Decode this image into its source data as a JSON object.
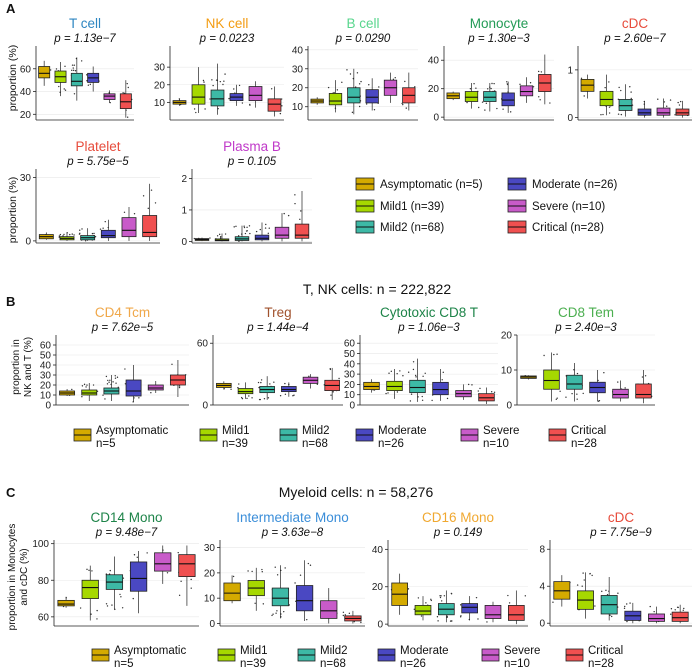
{
  "groups": [
    {
      "label": "Asymptomatic (n=5)",
      "short": "Asymptomatic",
      "n": "n=5",
      "color": "#D4AA00"
    },
    {
      "label": "Mild1 (n=39)",
      "short": "Mild1",
      "n": "n=39",
      "color": "#A6D800"
    },
    {
      "label": "Mild2 (n=68)",
      "short": "Mild2",
      "n": "n=68",
      "color": "#3DB9A6"
    },
    {
      "label": "Moderate (n=26)",
      "short": "Moderate",
      "n": "n=26",
      "color": "#4A48C2"
    },
    {
      "label": "Severe (n=10)",
      "short": "Severe",
      "n": "n=10",
      "color": "#C85BC9"
    },
    {
      "label": "Critical (n=28)",
      "short": "Critical",
      "n": "n=28",
      "color": "#F05050"
    }
  ],
  "panel_labels": {
    "a": "A",
    "b": "B",
    "c": "C"
  },
  "headers": {
    "b": "T, NK cells: n = 222,822",
    "c": "Myeloid cells: n = 58,276"
  },
  "ylabels": {
    "a": "proportion (%)",
    "b1": "proportion in",
    "b2": "NK and T (%)",
    "c1": "proportion in Monocytes",
    "c2": "and cDC (%)"
  },
  "chart_data": [
    {
      "type": "box",
      "id": "a_tcell",
      "title": "T cell",
      "title_color": "#2E86C1",
      "pvalue": "p = 1.13e−7",
      "ylim": [
        15,
        80
      ],
      "ticks": [
        20,
        40,
        60
      ],
      "boxes": [
        {
          "q1": 52,
          "med": 56,
          "q3": 62,
          "lo": 45,
          "hi": 67
        },
        {
          "q1": 48,
          "med": 53,
          "q3": 58,
          "lo": 36,
          "hi": 66
        },
        {
          "q1": 45,
          "med": 49,
          "q3": 56,
          "lo": 32,
          "hi": 70
        },
        {
          "q1": 48,
          "med": 52,
          "q3": 56,
          "lo": 40,
          "hi": 62
        },
        {
          "q1": 33,
          "med": 36,
          "q3": 38,
          "lo": 30,
          "hi": 41
        },
        {
          "q1": 25,
          "med": 31,
          "q3": 38,
          "lo": 17,
          "hi": 50
        }
      ]
    },
    {
      "type": "box",
      "id": "a_nk",
      "title": "NK cell",
      "title_color": "#F39C12",
      "pvalue": "p = 0.0223",
      "ylim": [
        0,
        42
      ],
      "ticks": [
        10,
        20,
        30
      ],
      "boxes": [
        {
          "q1": 9,
          "med": 10,
          "q3": 11,
          "lo": 8,
          "hi": 12
        },
        {
          "q1": 9,
          "med": 13,
          "q3": 20,
          "lo": 4,
          "hi": 30
        },
        {
          "q1": 8,
          "med": 12,
          "q3": 17,
          "lo": 3,
          "hi": 32
        },
        {
          "q1": 11,
          "med": 13,
          "q3": 15,
          "lo": 8,
          "hi": 20
        },
        {
          "q1": 11,
          "med": 14,
          "q3": 19,
          "lo": 7,
          "hi": 22
        },
        {
          "q1": 5,
          "med": 9,
          "q3": 12,
          "lo": 2,
          "hi": 19
        }
      ]
    },
    {
      "type": "box",
      "id": "a_bcell",
      "title": "B cell",
      "title_color": "#58D68D",
      "pvalue": "p = 0.0290",
      "ylim": [
        3,
        42
      ],
      "ticks": [
        10,
        20,
        30,
        40
      ],
      "boxes": [
        {
          "q1": 12,
          "med": 13,
          "q3": 14,
          "lo": 11,
          "hi": 15
        },
        {
          "q1": 11,
          "med": 13,
          "q3": 17,
          "lo": 7,
          "hi": 24
        },
        {
          "q1": 12,
          "med": 15,
          "q3": 20,
          "lo": 6,
          "hi": 30
        },
        {
          "q1": 12,
          "med": 15,
          "q3": 19,
          "lo": 8,
          "hi": 25
        },
        {
          "q1": 16,
          "med": 20,
          "q3": 24,
          "lo": 12,
          "hi": 28
        },
        {
          "q1": 12,
          "med": 16,
          "q3": 20,
          "lo": 8,
          "hi": 28
        }
      ]
    },
    {
      "type": "box",
      "id": "a_mono",
      "title": "Monocyte",
      "title_color": "#239B56",
      "pvalue": "p = 1.30e−3",
      "ylim": [
        -2,
        50
      ],
      "ticks": [
        0,
        20,
        40
      ],
      "boxes": [
        {
          "q1": 13,
          "med": 15,
          "q3": 17,
          "lo": 12,
          "hi": 18
        },
        {
          "q1": 11,
          "med": 14,
          "q3": 18,
          "lo": 6,
          "hi": 24
        },
        {
          "q1": 11,
          "med": 14,
          "q3": 18,
          "lo": 4,
          "hi": 24
        },
        {
          "q1": 8,
          "med": 12,
          "q3": 17,
          "lo": 3,
          "hi": 25
        },
        {
          "q1": 15,
          "med": 18,
          "q3": 22,
          "lo": 10,
          "hi": 28
        },
        {
          "q1": 18,
          "med": 24,
          "q3": 30,
          "lo": 9,
          "hi": 44
        }
      ]
    },
    {
      "type": "box",
      "id": "a_cdc",
      "title": "cDC",
      "title_color": "#E74C3C",
      "pvalue": "p = 2.60e−7",
      "ylim": [
        -0.05,
        1.5
      ],
      "ticks": [
        0,
        1
      ],
      "boxes": [
        {
          "q1": 0.55,
          "med": 0.68,
          "q3": 0.8,
          "lo": 0.4,
          "hi": 0.9
        },
        {
          "q1": 0.25,
          "med": 0.38,
          "q3": 0.55,
          "lo": 0.05,
          "hi": 0.9
        },
        {
          "q1": 0.15,
          "med": 0.25,
          "q3": 0.38,
          "lo": 0.02,
          "hi": 0.7
        },
        {
          "q1": 0.05,
          "med": 0.1,
          "q3": 0.18,
          "lo": 0.0,
          "hi": 0.35
        },
        {
          "q1": 0.05,
          "med": 0.1,
          "q3": 0.2,
          "lo": 0.0,
          "hi": 0.4
        },
        {
          "q1": 0.05,
          "med": 0.1,
          "q3": 0.18,
          "lo": 0.0,
          "hi": 0.35
        }
      ]
    },
    {
      "type": "box",
      "id": "a_platelet",
      "title": "Platelet",
      "title_color": "#E74C3C",
      "pvalue": "p = 5.75e−5",
      "ylim": [
        -1,
        34
      ],
      "ticks": [
        0,
        30
      ],
      "boxes": [
        {
          "q1": 1,
          "med": 2,
          "q3": 3,
          "lo": 0.5,
          "hi": 4
        },
        {
          "q1": 0.5,
          "med": 1.2,
          "q3": 2,
          "lo": 0,
          "hi": 4
        },
        {
          "q1": 0.5,
          "med": 1.5,
          "q3": 2.5,
          "lo": 0,
          "hi": 6
        },
        {
          "q1": 1.5,
          "med": 2.5,
          "q3": 5,
          "lo": 0,
          "hi": 10
        },
        {
          "q1": 2,
          "med": 5,
          "q3": 11,
          "lo": 0,
          "hi": 16
        },
        {
          "q1": 2,
          "med": 4,
          "q3": 12,
          "lo": 0,
          "hi": 27
        }
      ]
    },
    {
      "type": "box",
      "id": "a_plasmab",
      "title": "Plasma B",
      "title_color": "#C039C9",
      "pvalue": "p = 0.105",
      "ylim": [
        -0.05,
        2.3
      ],
      "ticks": [
        0,
        1,
        2
      ],
      "boxes": [
        {
          "q1": 0.03,
          "med": 0.06,
          "q3": 0.09,
          "lo": 0.01,
          "hi": 0.12
        },
        {
          "q1": 0.02,
          "med": 0.04,
          "q3": 0.08,
          "lo": 0,
          "hi": 0.25
        },
        {
          "q1": 0.03,
          "med": 0.08,
          "q3": 0.15,
          "lo": 0,
          "hi": 0.5
        },
        {
          "q1": 0.05,
          "med": 0.1,
          "q3": 0.2,
          "lo": 0,
          "hi": 0.6
        },
        {
          "q1": 0.1,
          "med": 0.2,
          "q3": 0.45,
          "lo": 0,
          "hi": 0.9
        },
        {
          "q1": 0.1,
          "med": 0.2,
          "q3": 0.55,
          "lo": 0,
          "hi": 1.6
        }
      ]
    },
    {
      "type": "box",
      "id": "b_cd4tcm",
      "title": "CD4 Tcm",
      "title_color": "#F0A84A",
      "pvalue": "p = 7.62e−5",
      "ylim": [
        0,
        70
      ],
      "ticks": [
        0,
        10,
        20,
        30,
        40,
        50,
        60
      ],
      "boxes": [
        {
          "q1": 10,
          "med": 12,
          "q3": 14,
          "lo": 9,
          "hi": 16
        },
        {
          "q1": 10,
          "med": 12,
          "q3": 15,
          "lo": 4,
          "hi": 22
        },
        {
          "q1": 11,
          "med": 14,
          "q3": 17,
          "lo": 4,
          "hi": 30
        },
        {
          "q1": 9,
          "med": 14,
          "q3": 25,
          "lo": 3,
          "hi": 40
        },
        {
          "q1": 15,
          "med": 17,
          "q3": 20,
          "lo": 12,
          "hi": 24
        },
        {
          "q1": 20,
          "med": 25,
          "q3": 30,
          "lo": 8,
          "hi": 45
        }
      ]
    },
    {
      "type": "box",
      "id": "b_treg",
      "title": "Treg",
      "title_color": "#A0522D",
      "pvalue": "p = 1.44e−4",
      "ylim": [
        0,
        68
      ],
      "ticks": [
        0,
        60
      ],
      "boxes": [
        {
          "q1": 17,
          "med": 19,
          "q3": 21,
          "lo": 15,
          "hi": 23
        },
        {
          "q1": 11,
          "med": 13,
          "q3": 16,
          "lo": 6,
          "hi": 22
        },
        {
          "q1": 12,
          "med": 15,
          "q3": 18,
          "lo": 5,
          "hi": 28
        },
        {
          "q1": 13,
          "med": 15,
          "q3": 18,
          "lo": 8,
          "hi": 22
        },
        {
          "q1": 21,
          "med": 24,
          "q3": 27,
          "lo": 16,
          "hi": 30
        },
        {
          "q1": 14,
          "med": 19,
          "q3": 24,
          "lo": 5,
          "hi": 36
        }
      ]
    },
    {
      "type": "box",
      "id": "b_cytotoxic",
      "title": "Cytotoxic CD8 T",
      "title_color": "#1E8449",
      "pvalue": "p = 1.06e−3",
      "ylim": [
        0,
        68
      ],
      "ticks": [
        0,
        10,
        20,
        30,
        40,
        50,
        60
      ],
      "boxes": [
        {
          "q1": 15,
          "med": 18,
          "q3": 22,
          "lo": 12,
          "hi": 25
        },
        {
          "q1": 14,
          "med": 18,
          "q3": 23,
          "lo": 6,
          "hi": 35
        },
        {
          "q1": 12,
          "med": 17,
          "q3": 24,
          "lo": 3,
          "hi": 45
        },
        {
          "q1": 10,
          "med": 15,
          "q3": 22,
          "lo": 4,
          "hi": 35
        },
        {
          "q1": 8,
          "med": 11,
          "q3": 14,
          "lo": 5,
          "hi": 20
        },
        {
          "q1": 4,
          "med": 7,
          "q3": 11,
          "lo": 1,
          "hi": 17
        }
      ]
    },
    {
      "type": "box",
      "id": "b_cd8tem",
      "title": "CD8 Tem",
      "title_color": "#4CAF50",
      "pvalue": "p = 2.40e−3",
      "ylim": [
        0,
        20
      ],
      "ticks": [
        0,
        10,
        20
      ],
      "boxes": [
        {
          "q1": 7.6,
          "med": 8,
          "q3": 8.3,
          "lo": 7.3,
          "hi": 8.5
        },
        {
          "q1": 4.5,
          "med": 7,
          "q3": 10,
          "lo": 1,
          "hi": 15
        },
        {
          "q1": 4.5,
          "med": 6,
          "q3": 8.5,
          "lo": 1,
          "hi": 12
        },
        {
          "q1": 3.5,
          "med": 5,
          "q3": 6.5,
          "lo": 1,
          "hi": 10
        },
        {
          "q1": 2,
          "med": 3,
          "q3": 4.5,
          "lo": 1,
          "hi": 7
        },
        {
          "q1": 2,
          "med": 3,
          "q3": 6,
          "lo": 0.5,
          "hi": 10
        }
      ]
    },
    {
      "type": "box",
      "id": "c_cd14",
      "title": "CD14 Mono",
      "title_color": "#1E8449",
      "pvalue": "p = 9.48e−7",
      "ylim": [
        55,
        102
      ],
      "ticks": [
        60,
        80,
        100
      ],
      "boxes": [
        {
          "q1": 66,
          "med": 67,
          "q3": 69,
          "lo": 65,
          "hi": 71
        },
        {
          "q1": 70,
          "med": 76,
          "q3": 80,
          "lo": 58,
          "hi": 88
        },
        {
          "q1": 75,
          "med": 79,
          "q3": 83,
          "lo": 64,
          "hi": 93
        },
        {
          "q1": 74,
          "med": 81,
          "q3": 90,
          "lo": 62,
          "hi": 96
        },
        {
          "q1": 85,
          "med": 89,
          "q3": 95,
          "lo": 78,
          "hi": 99
        },
        {
          "q1": 82,
          "med": 89,
          "q3": 94,
          "lo": 66,
          "hi": 99
        }
      ]
    },
    {
      "type": "box",
      "id": "c_intermediate",
      "title": "Intermediate Mono",
      "title_color": "#3B8ED9",
      "pvalue": "p = 3.63e−8",
      "ylim": [
        -1,
        33
      ],
      "ticks": [
        0,
        10,
        20,
        30
      ],
      "boxes": [
        {
          "q1": 9,
          "med": 12,
          "q3": 16,
          "lo": 8,
          "hi": 19
        },
        {
          "q1": 11,
          "med": 14,
          "q3": 17,
          "lo": 5,
          "hi": 22
        },
        {
          "q1": 7,
          "med": 10,
          "q3": 14,
          "lo": 2,
          "hi": 23
        },
        {
          "q1": 5,
          "med": 9,
          "q3": 15,
          "lo": 1,
          "hi": 25
        },
        {
          "q1": 2,
          "med": 5,
          "q3": 9,
          "lo": 0,
          "hi": 14
        },
        {
          "q1": 1,
          "med": 2,
          "q3": 3,
          "lo": 0,
          "hi": 5
        }
      ]
    },
    {
      "type": "box",
      "id": "c_cd16",
      "title": "CD16 Mono",
      "title_color": "#F0A830",
      "pvalue": "p = 0.149",
      "ylim": [
        -1,
        45
      ],
      "ticks": [
        0,
        20,
        40
      ],
      "boxes": [
        {
          "q1": 10,
          "med": 16,
          "q3": 22,
          "lo": 5,
          "hi": 27
        },
        {
          "q1": 5,
          "med": 7,
          "q3": 10,
          "lo": 2,
          "hi": 15
        },
        {
          "q1": 5,
          "med": 8,
          "q3": 11,
          "lo": 1,
          "hi": 18
        },
        {
          "q1": 6,
          "med": 9,
          "q3": 11,
          "lo": 2,
          "hi": 15
        },
        {
          "q1": 3,
          "med": 5,
          "q3": 10,
          "lo": 1,
          "hi": 12
        },
        {
          "q1": 2,
          "med": 5,
          "q3": 10,
          "lo": 0,
          "hi": 18
        }
      ]
    },
    {
      "type": "box",
      "id": "c_cdc",
      "title": "cDC",
      "title_color": "#E74C3C",
      "pvalue": "p = 7.75e−9",
      "ylim": [
        -0.3,
        9
      ],
      "ticks": [
        0,
        4,
        8
      ],
      "boxes": [
        {
          "q1": 2.6,
          "med": 3.5,
          "q3": 4.5,
          "lo": 1.8,
          "hi": 5.2
        },
        {
          "q1": 1.5,
          "med": 2.5,
          "q3": 3.5,
          "lo": 0.5,
          "hi": 5.5
        },
        {
          "q1": 1,
          "med": 2,
          "q3": 3,
          "lo": 0.3,
          "hi": 5
        },
        {
          "q1": 0.3,
          "med": 0.8,
          "q3": 1.3,
          "lo": 0,
          "hi": 2.2
        },
        {
          "q1": 0.2,
          "med": 0.5,
          "q3": 1,
          "lo": 0,
          "hi": 1.8
        },
        {
          "q1": 0.2,
          "med": 0.6,
          "q3": 1.2,
          "lo": 0,
          "hi": 2
        }
      ]
    }
  ]
}
